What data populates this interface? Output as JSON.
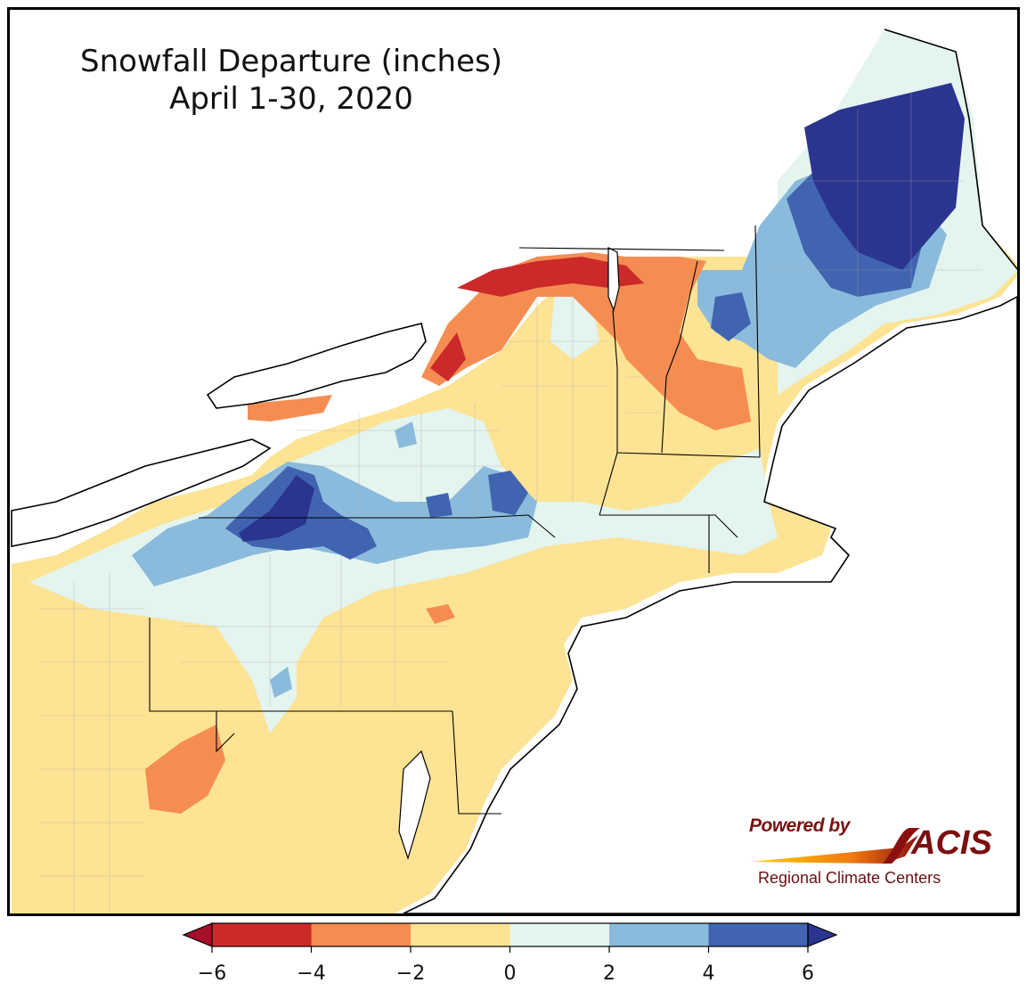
{
  "title": {
    "line1": "Snowfall Departure (inches)",
    "line2": "April 1-30, 2020"
  },
  "legend": {
    "ticks": [
      "−6",
      "−4",
      "−2",
      "0",
      "2",
      "4",
      "6"
    ],
    "bins": [
      {
        "range": "-6 to -4",
        "color": "#cc2a2a"
      },
      {
        "range": "-4 to -2",
        "color": "#f58d52"
      },
      {
        "range": "-2 to 0",
        "color": "#fde394"
      },
      {
        "range": "0 to 2",
        "color": "#e4f4ef"
      },
      {
        "range": "2 to 4",
        "color": "#8bbbdc"
      },
      {
        "range": "4 to 6",
        "color": "#4064b0"
      }
    ],
    "under_color": "#a50f2a",
    "over_color": "#2b348e",
    "extend": "both"
  },
  "logo": {
    "powered_by": "Powered by",
    "name": "ACIS",
    "subtitle": "Regional Climate Centers"
  },
  "map": {
    "region": "Northeast US",
    "colors": {
      "water": "#ffffff",
      "border": "#000000",
      "county_lines": "#a8a8a8"
    }
  }
}
